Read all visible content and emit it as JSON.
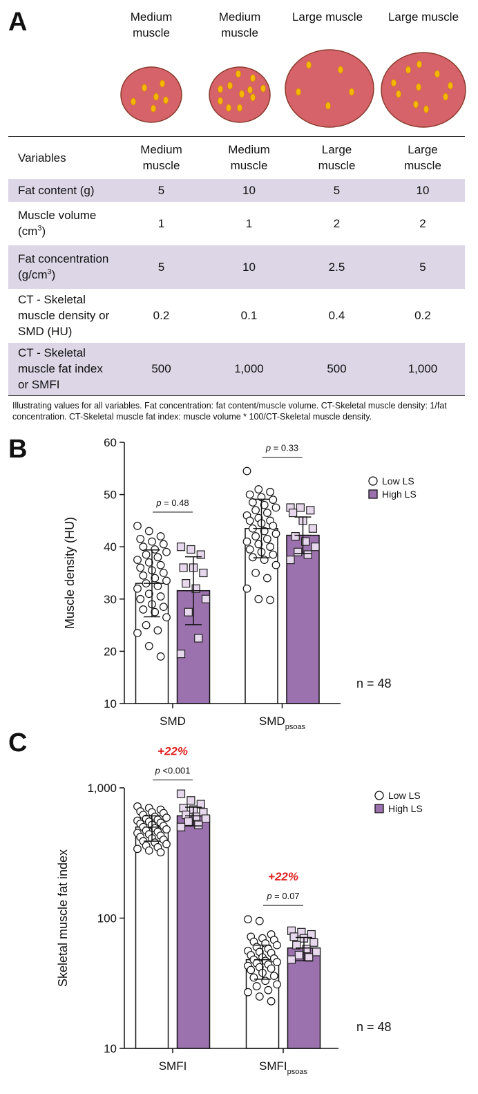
{
  "panel_a": {
    "label": "A",
    "illustration": [
      "Medium muscle",
      "Medium muscle",
      "Large muscle",
      "Large muscle"
    ],
    "table": {
      "header": [
        "Variables",
        "Medium muscle",
        "Medium muscle",
        "Large muscle",
        "Large muscle"
      ],
      "rows": [
        {
          "label": [
            "Fat content (g)"
          ],
          "cells": [
            5,
            10,
            5,
            10
          ]
        },
        {
          "label": [
            "Muscle volume (cm",
            {
              "sup": "3"
            },
            ")"
          ],
          "cells": [
            1,
            1,
            2,
            2
          ]
        },
        {
          "label": [
            "Fat concentration (g/cm",
            {
              "sup": "3"
            },
            ")"
          ],
          "cells": [
            5,
            10,
            2.5,
            5
          ]
        },
        {
          "label": [
            "CT - Skeletal muscle density or SMD (HU)"
          ],
          "cells": [
            0.2,
            0.1,
            0.4,
            0.2
          ]
        },
        {
          "label": [
            "CT - Skeletal muscle fat index or SMFI"
          ],
          "cells": [
            500,
            {
              "value": 1000,
              "label": "1,000"
            },
            500,
            {
              "value": 1000,
              "label": "1,000"
            }
          ]
        }
      ]
    },
    "caption": "Illustrating values for all variables. Fat concentration: fat content/muscle volume. CT-Skeletal muscle density: 1/fat concentration. CT-Skeletal muscle fat index: muscle volume * 100/CT-Skeletal muscle density."
  },
  "chart_data": [
    {
      "type": "bar",
      "panel_label": "B",
      "y_label": "Muscle density (HU)",
      "categories": [
        "SMD",
        {
          "text": "SMD",
          "sub": "psoas"
        }
      ],
      "ylim": [
        10,
        60
      ],
      "yticks": [
        10,
        20,
        30,
        40,
        50,
        60
      ],
      "log_scale": false,
      "legend": "right",
      "note": "n = 48",
      "annotations": [
        {
          "p": "p",
          "text": " = 0.48"
        },
        {
          "p": "p",
          "text": " = 0.33"
        }
      ],
      "series": [
        {
          "name": "Low LS",
          "color": "#ffffff",
          "marker": "circle",
          "point_color": "#ffffff",
          "values": [
            33,
            43.5
          ],
          "errors": [
            6.4,
            5.6
          ],
          "points": [
            [
              44,
              43,
              42,
              41.5,
              41,
              40.5,
              40,
              39.5,
              39,
              38.5,
              38,
              37.5,
              37,
              36.5,
              36,
              35.5,
              35,
              34.5,
              34,
              33.5,
              33,
              32.5,
              32,
              31,
              30.5,
              30,
              29,
              28.5,
              28,
              27.5,
              26.5,
              25,
              24,
              23.5,
              21,
              19
            ],
            [
              54.5,
              51,
              50.5,
              50,
              49.5,
              49,
              48.5,
              48,
              47.5,
              47,
              46.5,
              46,
              45.5,
              45,
              45,
              44.5,
              44,
              43.5,
              43,
              42.5,
              42,
              41.5,
              41,
              40.5,
              40,
              39.5,
              39,
              38.5,
              38,
              37.5,
              36.5,
              35,
              34,
              32,
              30,
              29.8
            ]
          ]
        },
        {
          "name": "High LS",
          "color": "#9b72ae",
          "marker": "square",
          "point_color": "#e8d8ee",
          "values": [
            31.6,
            42.2
          ],
          "errors": [
            6.5,
            3.5
          ],
          "points": [
            [
              40,
              39.5,
              38.5,
              36,
              36,
              35,
              33,
              32,
              30,
              27.5,
              22.5,
              19.5
            ],
            [
              47.5,
              47.5,
              47,
              46.5,
              45,
              43.5,
              42,
              41,
              40,
              39,
              38.5,
              37.5
            ]
          ]
        }
      ]
    },
    {
      "type": "bar",
      "panel_label": "C",
      "y_label": "Skeletal muscle fat index",
      "categories": [
        "SMFI",
        {
          "text": "SMFI",
          "sub": "psoas"
        }
      ],
      "ylim": [
        10,
        1000
      ],
      "yticks": [
        10,
        100,
        {
          "value": 1000,
          "label": "1,000"
        }
      ],
      "log_scale": true,
      "legend": "right",
      "note": "n = 48",
      "annotations": [
        {
          "change": "+22%",
          "p": "p",
          "text": " <0.001"
        },
        {
          "change": "+22%",
          "p": "p",
          "text": " = 0.07"
        }
      ],
      "series": [
        {
          "name": "Low LS",
          "color": "#ffffff",
          "marker": "circle",
          "point_color": "#ffffff",
          "values": [
            500,
            48
          ],
          "errors": [
            110,
            14
          ],
          "points": [
            [
              720,
              700,
              680,
              660,
              650,
              640,
              620,
              600,
              590,
              580,
              570,
              560,
              550,
              540,
              530,
              520,
              510,
              500,
              490,
              480,
              470,
              460,
              450,
              440,
              430,
              420,
              410,
              400,
              390,
              380,
              370,
              360,
              350,
              340,
              330,
              320
            ],
            [
              98,
              95,
              75,
              72,
              70,
              68,
              66,
              64,
              62,
              60,
              58,
              56,
              55,
              54,
              52,
              50,
              49,
              48,
              47,
              46,
              45,
              44,
              43,
              42,
              41,
              40,
              38,
              36,
              35,
              33,
              31,
              30,
              28,
              27,
              25,
              23
            ]
          ]
        },
        {
          "name": "High LS",
          "color": "#9b72ae",
          "marker": "square",
          "point_color": "#e8d8ee",
          "values": [
            610,
            59
          ],
          "errors": [
            100,
            12
          ],
          "points": [
            [
              900,
              800,
              750,
              700,
              680,
              650,
              620,
              600,
              580,
              550,
              520,
              500
            ],
            [
              80,
              78,
              75,
              72,
              70,
              65,
              62,
              58,
              55,
              52,
              50,
              48
            ]
          ]
        }
      ]
    }
  ]
}
